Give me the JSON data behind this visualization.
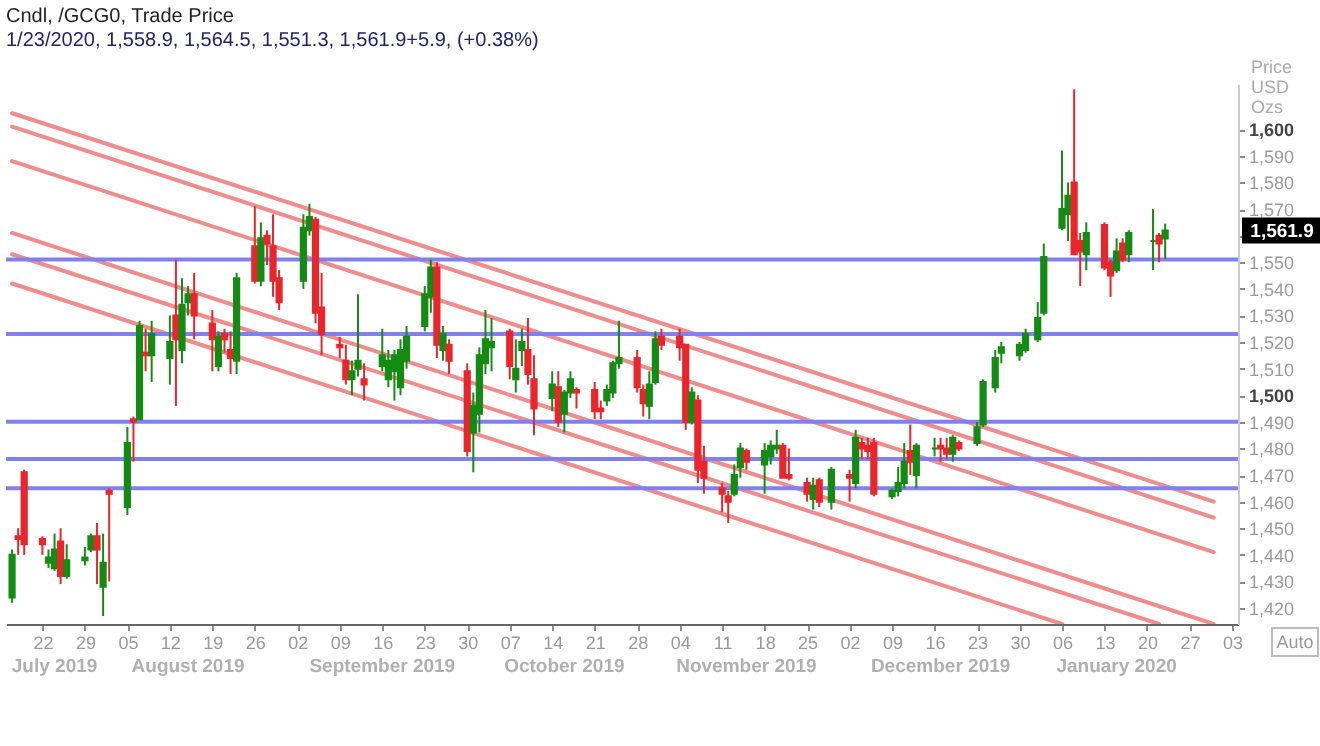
{
  "chart_data": {
    "type": "candlestick",
    "title": "Cndl, /GCG0, Trade Price",
    "subtitle": "1/23/2020, 1,558.9, 1,564.5, 1,551.3, 1,561.9+5.9, (+0.38%)",
    "ylabel": "Price USD Ozs",
    "colors": [
      "#148c14",
      "#e8262b",
      "#e8262b",
      "#e8262b",
      "#148c14",
      "#148c14",
      "#e8262b",
      "#148c14",
      "#148c14",
      "#148c14",
      "#e8262b",
      "#148c14",
      "#e8262b",
      "#148c14",
      "#e8262b",
      "#148c14",
      "#e8262b",
      "#148c14",
      "#148c14",
      "#e8262b",
      "#148c14",
      "#148c14",
      "#e8262b",
      "#e8262b",
      "#148c14",
      "#e8262b",
      "#e8262b",
      "#148c14",
      "#e8262b",
      "#148c14",
      "#e8262b",
      "#e8262b",
      "#e8262b",
      "#148c14",
      "#148c14",
      "#e8262b",
      "#e8262b",
      "#e8262b",
      "#e8262b",
      "#148c14",
      "#148c14",
      "#e8262b",
      "#148c14",
      "#148c14",
      "#148c14",
      "#148c14",
      "#148c14",
      "#148c14",
      "#148c14",
      "#e8262b",
      "#148c14",
      "#e8262b",
      "#e8262b",
      "#148c14",
      "#148c14",
      "#148c14",
      "#148c14",
      "#e8262b",
      "#148c14",
      "#148c14",
      "#e8262b",
      "#e8262b",
      "#148c14",
      "#e8262b",
      "#148c14",
      "#148c14",
      "#e8262b",
      "#e8262b",
      "#e8262b",
      "#148c14",
      "#148c14",
      "#148c14",
      "#e8262b",
      "#e8262b",
      "#148c14",
      "#148c14",
      "#e8262b",
      "#e8262b",
      "#e8262b",
      "#148c14",
      "#e8262b",
      "#e8262b",
      "#e8262b",
      "#e8262b",
      "#148c14",
      "#148c14",
      "#e8262b",
      "#148c14",
      "#148c14",
      "#148c14",
      "#e8262b",
      "#e8262b",
      "#e8262b",
      "#148c14",
      "#e8262b",
      "#148c14",
      "#e8262b",
      "#148c14",
      "#e8262b",
      "#e8262b",
      "#e8262b",
      "#148c14",
      "#148c14",
      "#148c14",
      "#e8262b",
      "#148c14",
      "#148c14",
      "#e8262b",
      "#e8262b",
      "#148c14",
      "#e8262b",
      "#148c14",
      "#148c14",
      "#148c14",
      "#148c14",
      "#148c14",
      "#148c14",
      "#148c14",
      "#148c14",
      "#148c14",
      "#148c14",
      "#e8262b",
      "#e8262b",
      "#148c14",
      "#e8262b",
      "#e8262b",
      "#148c14",
      "#e8262b",
      "#148c14",
      "#148c14",
      "#e8262b",
      "#148c14"
    ],
    "x": [
      "2019-07-17",
      "2019-07-18",
      "2019-07-19",
      "2019-07-22",
      "2019-07-23",
      "2019-07-24",
      "2019-07-25",
      "2019-07-26",
      "2019-07-29",
      "2019-07-30",
      "2019-07-31",
      "2019-08-01",
      "2019-08-02",
      "2019-08-05",
      "2019-08-06",
      "2019-08-07",
      "2019-08-08",
      "2019-08-09",
      "2019-08-12",
      "2019-08-13",
      "2019-08-14",
      "2019-08-15",
      "2019-08-16",
      "2019-08-19",
      "2019-08-20",
      "2019-08-21",
      "2019-08-22",
      "2019-08-23",
      "2019-08-26",
      "2019-08-27",
      "2019-08-28",
      "2019-08-29",
      "2019-08-30",
      "2019-09-03",
      "2019-09-04",
      "2019-09-05",
      "2019-09-06",
      "2019-09-09",
      "2019-09-10",
      "2019-09-11",
      "2019-09-12",
      "2019-09-13",
      "2019-09-16",
      "2019-09-17",
      "2019-09-18",
      "2019-09-19",
      "2019-09-20",
      "2019-09-23",
      "2019-09-24",
      "2019-09-25",
      "2019-09-26",
      "2019-09-27",
      "2019-09-30",
      "2019-10-01",
      "2019-10-02",
      "2019-10-03",
      "2019-10-04",
      "2019-10-07",
      "2019-10-08",
      "2019-10-09",
      "2019-10-10",
      "2019-10-11",
      "2019-10-14",
      "2019-10-15",
      "2019-10-16",
      "2019-10-17",
      "2019-10-18",
      "2019-10-21",
      "2019-10-22",
      "2019-10-23",
      "2019-10-24",
      "2019-10-25",
      "2019-10-28",
      "2019-10-29",
      "2019-10-30",
      "2019-10-31",
      "2019-11-01",
      "2019-11-04",
      "2019-11-05",
      "2019-11-06",
      "2019-11-07",
      "2019-11-08",
      "2019-11-11",
      "2019-11-12",
      "2019-11-13",
      "2019-11-14",
      "2019-11-15",
      "2019-11-18",
      "2019-11-19",
      "2019-11-20",
      "2019-11-21",
      "2019-11-22",
      "2019-11-25",
      "2019-11-26",
      "2019-11-27",
      "2019-11-29",
      "2019-12-02",
      "2019-12-03",
      "2019-12-04",
      "2019-12-05",
      "2019-12-06",
      "2019-12-09",
      "2019-12-10",
      "2019-12-11",
      "2019-12-12",
      "2019-12-13",
      "2019-12-16",
      "2019-12-17",
      "2019-12-18",
      "2019-12-19",
      "2019-12-20",
      "2019-12-23",
      "2019-12-24",
      "2019-12-26",
      "2019-12-27",
      "2019-12-30",
      "2019-12-31",
      "2020-01-02",
      "2020-01-03",
      "2020-01-06",
      "2020-01-07",
      "2020-01-08",
      "2020-01-09",
      "2020-01-10",
      "2020-01-13",
      "2020-01-14",
      "2020-01-15",
      "2020-01-16",
      "2020-01-17",
      "2020-01-21",
      "2020-01-22",
      "2020-01-23"
    ],
    "ohlc": [
      [
        1424,
        1442,
        1422,
        1440
      ],
      [
        1447,
        1450,
        1440,
        1446
      ],
      [
        1471,
        1472,
        1440,
        1444
      ],
      [
        1446,
        1447,
        1440,
        1444
      ],
      [
        1437,
        1442,
        1435,
        1439
      ],
      [
        1435,
        1448,
        1434,
        1442
      ],
      [
        1445,
        1450,
        1429,
        1432
      ],
      [
        1432,
        1444,
        1431,
        1438
      ],
      [
        1438,
        1443,
        1436,
        1439
      ],
      [
        1442,
        1448,
        1441,
        1447
      ],
      [
        1447,
        1452,
        1429,
        1442
      ],
      [
        1428,
        1448,
        1417,
        1437
      ],
      [
        1464,
        1465,
        1430,
        1463
      ],
      [
        1458,
        1488,
        1455,
        1482
      ],
      [
        1491,
        1492,
        1475,
        1490
      ],
      [
        1491,
        1528,
        1491,
        1526
      ],
      [
        1516,
        1525,
        1509,
        1515
      ],
      [
        1515,
        1528,
        1505,
        1523
      ],
      [
        1514,
        1530,
        1504,
        1520
      ],
      [
        1530,
        1551,
        1496,
        1521
      ],
      [
        1517,
        1544,
        1512,
        1534
      ],
      [
        1535,
        1541,
        1530,
        1538
      ],
      [
        1538,
        1546,
        1521,
        1530
      ],
      [
        1527,
        1532,
        1509,
        1521
      ],
      [
        1511,
        1524,
        1509,
        1522
      ],
      [
        1523,
        1525,
        1516,
        1521
      ],
      [
        1517,
        1524,
        1508,
        1514
      ],
      [
        1513,
        1546,
        1508,
        1544
      ],
      [
        1556,
        1571,
        1542,
        1543
      ],
      [
        1543,
        1565,
        1541,
        1559
      ],
      [
        1560,
        1562,
        1549,
        1557
      ],
      [
        1556,
        1568,
        1537,
        1543
      ],
      [
        1544,
        1547,
        1532,
        1535
      ],
      [
        1543,
        1568,
        1540,
        1563
      ],
      [
        1562,
        1572,
        1560,
        1567
      ],
      [
        1566,
        1567,
        1527,
        1531
      ],
      [
        1533,
        1546,
        1515,
        1523
      ],
      [
        1519,
        1522,
        1514,
        1518
      ],
      [
        1513,
        1519,
        1504,
        1506
      ],
      [
        1506,
        1513,
        1500,
        1509
      ],
      [
        1510,
        1538,
        1507,
        1513
      ],
      [
        1506,
        1512,
        1498,
        1504
      ],
      [
        1511,
        1525,
        1509,
        1515
      ],
      [
        1506,
        1517,
        1503,
        1513
      ],
      [
        1509,
        1517,
        1498,
        1515
      ],
      [
        1503,
        1521,
        1500,
        1517
      ],
      [
        1513,
        1526,
        1510,
        1522
      ],
      [
        1526,
        1541,
        1524,
        1538
      ],
      [
        1537,
        1551,
        1531,
        1548
      ],
      [
        1548,
        1550,
        1514,
        1519
      ],
      [
        1517,
        1526,
        1513,
        1523
      ],
      [
        1519,
        1521,
        1508,
        1513
      ],
      [
        1509,
        1512,
        1477,
        1479
      ],
      [
        1486,
        1501,
        1471,
        1496
      ],
      [
        1493,
        1518,
        1486,
        1515
      ],
      [
        1512,
        1532,
        1508,
        1521
      ],
      [
        1518,
        1529,
        1509,
        1520
      ],
      [
        1524,
        1525,
        1506,
        1511
      ],
      [
        1506,
        1521,
        1501,
        1510
      ],
      [
        1517,
        1525,
        1511,
        1520
      ],
      [
        1517,
        1529,
        1504,
        1508
      ],
      [
        1506,
        1515,
        1485,
        1495
      ],
      [
        1499,
        1509,
        1494,
        1504
      ],
      [
        1503,
        1509,
        1488,
        1490
      ],
      [
        1493,
        1502,
        1486,
        1501
      ],
      [
        1501,
        1509,
        1499,
        1506
      ],
      [
        1502,
        1503,
        1495,
        1501
      ],
      [
        1502,
        1505,
        1491,
        1494
      ],
      [
        1495,
        1498,
        1491,
        1494
      ],
      [
        1498,
        1504,
        1496,
        1502
      ],
      [
        1501,
        1513,
        1499,
        1512
      ],
      [
        1512,
        1528,
        1510,
        1514
      ],
      [
        1514,
        1517,
        1501,
        1503
      ],
      [
        1502,
        1504,
        1492,
        1497
      ],
      [
        1496,
        1509,
        1491,
        1504
      ],
      [
        1505,
        1524,
        1504,
        1521
      ],
      [
        1522,
        1525,
        1517,
        1519
      ],
      [
        1522,
        1525,
        1513,
        1518
      ],
      [
        1519,
        1519,
        1487,
        1490
      ],
      [
        1490,
        1503,
        1489,
        1501
      ],
      [
        1498,
        1500,
        1467,
        1472
      ],
      [
        1475,
        1481,
        1463,
        1469
      ],
      [
        1465,
        1467,
        1456,
        1463
      ],
      [
        1462,
        1464,
        1452,
        1460
      ],
      [
        1463,
        1474,
        1462,
        1470
      ],
      [
        1473,
        1482,
        1469,
        1480
      ],
      [
        1479,
        1480,
        1472,
        1475
      ],
      [
        1474,
        1482,
        1463,
        1479
      ],
      [
        1477,
        1483,
        1474,
        1481
      ],
      [
        1480,
        1487,
        1478,
        1481
      ],
      [
        1481,
        1482,
        1469,
        1469
      ],
      [
        1470,
        1480,
        1468,
        1469
      ],
      [
        1467,
        1469,
        1460,
        1463
      ],
      [
        1461,
        1469,
        1457,
        1466
      ],
      [
        1468,
        1469,
        1458,
        1460
      ],
      [
        1460,
        1473,
        1457,
        1472
      ],
      [
        1470,
        1472,
        1460,
        1469
      ],
      [
        1467,
        1487,
        1465,
        1484
      ],
      [
        1482,
        1484,
        1476,
        1480
      ],
      [
        1481,
        1484,
        1476,
        1479
      ],
      [
        1482,
        1484,
        1462,
        1463
      ],
      [
        1462,
        1465,
        1461,
        1464
      ],
      [
        1464,
        1473,
        1462,
        1467
      ],
      [
        1467,
        1482,
        1465,
        1475
      ],
      [
        1479,
        1489,
        1470,
        1475
      ],
      [
        1470,
        1482,
        1465,
        1481
      ],
      [
        1480,
        1484,
        1477,
        1480
      ],
      [
        1481,
        1484,
        1475,
        1480
      ],
      [
        1480,
        1484,
        1476,
        1478
      ],
      [
        1478,
        1485,
        1475,
        1484
      ],
      [
        1482,
        1483,
        1479,
        1480
      ],
      [
        1482,
        1490,
        1481,
        1488
      ],
      [
        1489,
        1506,
        1488,
        1505
      ],
      [
        1503,
        1517,
        1501,
        1514
      ],
      [
        1516,
        1520,
        1512,
        1518
      ],
      [
        1515,
        1520,
        1513,
        1519
      ],
      [
        1517,
        1525,
        1516,
        1523
      ],
      [
        1521,
        1535,
        1520,
        1529
      ],
      [
        1531,
        1557,
        1530,
        1552
      ],
      [
        1563,
        1592,
        1562,
        1570
      ],
      [
        1568,
        1580,
        1558,
        1575
      ],
      [
        1580,
        1615,
        1553,
        1553
      ],
      [
        1558,
        1561,
        1541,
        1554
      ],
      [
        1553,
        1565,
        1547,
        1561
      ],
      [
        1564,
        1565,
        1547,
        1548
      ],
      [
        1550,
        1551,
        1537,
        1545
      ],
      [
        1547,
        1559,
        1546,
        1554
      ],
      [
        1557,
        1559,
        1550,
        1551
      ],
      [
        1553,
        1562,
        1550,
        1561
      ],
      [
        1558,
        1570,
        1547,
        1558
      ],
      [
        1560,
        1561,
        1550,
        1557
      ],
      [
        1558.9,
        1564.5,
        1551.3,
        1561.9
      ]
    ],
    "series": [
      {
        "type": "line",
        "color": "#f08c8c",
        "x": [
          "2019-07-17",
          "2020-01-31"
        ],
        "values": [
          1606,
          1460
        ]
      },
      {
        "type": "line",
        "color": "#f08c8c",
        "x": [
          "2019-07-17",
          "2020-01-31"
        ],
        "values": [
          1601,
          1454
        ]
      },
      {
        "type": "line",
        "color": "#f08c8c",
        "x": [
          "2019-07-17",
          "2020-01-31"
        ],
        "values": [
          1588,
          1441
        ]
      },
      {
        "type": "line",
        "color": "#f08c8c",
        "x": [
          "2019-07-17",
          "2020-01-31"
        ],
        "values": [
          1561,
          1414
        ]
      },
      {
        "type": "line",
        "color": "#f08c8c",
        "x": [
          "2019-07-17",
          "2020-01-22"
        ],
        "values": [
          1553,
          1414
        ]
      },
      {
        "type": "line",
        "color": "#f08c8c",
        "x": [
          "2019-07-17",
          "2020-01-06"
        ],
        "values": [
          1542,
          1414
        ]
      }
    ],
    "ref_lines": [
      {
        "axis": "y",
        "value": 1551,
        "color": "#8080f0"
      },
      {
        "axis": "y",
        "value": 1523,
        "color": "#8080f0"
      },
      {
        "axis": "y",
        "value": 1490,
        "color": "#8080f0"
      },
      {
        "axis": "y",
        "value": 1476,
        "color": "#8080f0"
      },
      {
        "axis": "y",
        "value": 1465,
        "color": "#8080f0"
      }
    ],
    "annotations": [
      "1,561.9",
      "Auto"
    ],
    "xlim": [
      "2019-07-16",
      "2020-02-04"
    ],
    "x2lim": [
      "2019-07-16",
      "2020-02-04"
    ],
    "ylim": [
      1414,
      1617
    ],
    "xticks": [
      {
        "value": "2019-07-22",
        "label": "22"
      },
      {
        "value": "2019-07-29",
        "label": "29"
      },
      {
        "value": "2019-08-05",
        "label": "05"
      },
      {
        "value": "2019-08-12",
        "label": "12"
      },
      {
        "value": "2019-08-19",
        "label": "19"
      },
      {
        "value": "2019-08-26",
        "label": "26"
      },
      {
        "value": "2019-09-02",
        "label": "02"
      },
      {
        "value": "2019-09-09",
        "label": "09"
      },
      {
        "value": "2019-09-16",
        "label": "16"
      },
      {
        "value": "2019-09-23",
        "label": "23"
      },
      {
        "value": "2019-09-30",
        "label": "30"
      },
      {
        "value": "2019-10-07",
        "label": "07"
      },
      {
        "value": "2019-10-14",
        "label": "14"
      },
      {
        "value": "2019-10-21",
        "label": "21"
      },
      {
        "value": "2019-10-28",
        "label": "28"
      },
      {
        "value": "2019-11-04",
        "label": "04"
      },
      {
        "value": "2019-11-11",
        "label": "11"
      },
      {
        "value": "2019-11-18",
        "label": "18"
      },
      {
        "value": "2019-11-25",
        "label": "25"
      },
      {
        "value": "2019-12-02",
        "label": "02"
      },
      {
        "value": "2019-12-09",
        "label": "09"
      },
      {
        "value": "2019-12-16",
        "label": "16"
      },
      {
        "value": "2019-12-23",
        "label": "23"
      },
      {
        "value": "2019-12-30",
        "label": "30"
      },
      {
        "value": "2020-01-06",
        "label": "06"
      },
      {
        "value": "2020-01-13",
        "label": "13"
      },
      {
        "value": "2020-01-20",
        "label": "20"
      },
      {
        "value": "2020-01-27",
        "label": "27"
      },
      {
        "value": "2020-02-03",
        "label": "03"
      }
    ],
    "x2ticks": [
      {
        "value": "2019-07-24",
        "label": "July 2019"
      },
      {
        "value": "2019-08-15",
        "label": "August 2019"
      },
      {
        "value": "2019-09-16",
        "label": "September 2019"
      },
      {
        "value": "2019-10-16",
        "label": "October 2019"
      },
      {
        "value": "2019-11-15",
        "label": "November 2019"
      },
      {
        "value": "2019-12-17",
        "label": "December 2019"
      },
      {
        "value": "2020-01-15",
        "label": "January 2020"
      }
    ],
    "yticks": [
      {
        "value": 1420,
        "label": "1,420"
      },
      {
        "value": 1430,
        "label": "1,430"
      },
      {
        "value": 1440,
        "label": "1,440"
      },
      {
        "value": 1450,
        "label": "1,450"
      },
      {
        "value": 1460,
        "label": "1,460"
      },
      {
        "value": 1470,
        "label": "1,470"
      },
      {
        "value": 1480,
        "label": "1,480"
      },
      {
        "value": 1490,
        "label": "1,490"
      },
      {
        "value": 1500,
        "label": "1,500"
      },
      {
        "value": 1510,
        "label": "1,510"
      },
      {
        "value": 1520,
        "label": "1,520"
      },
      {
        "value": 1530,
        "label": "1,530"
      },
      {
        "value": 1540,
        "label": "1,540"
      },
      {
        "value": 1550,
        "label": "1,550"
      },
      {
        "value": 1560,
        "label": null
      },
      {
        "value": 1570,
        "label": "1,570"
      },
      {
        "value": 1580,
        "label": "1,580"
      },
      {
        "value": 1590,
        "label": "1,590"
      },
      {
        "value": 1600,
        "label": "1,600"
      }
    ]
  }
}
